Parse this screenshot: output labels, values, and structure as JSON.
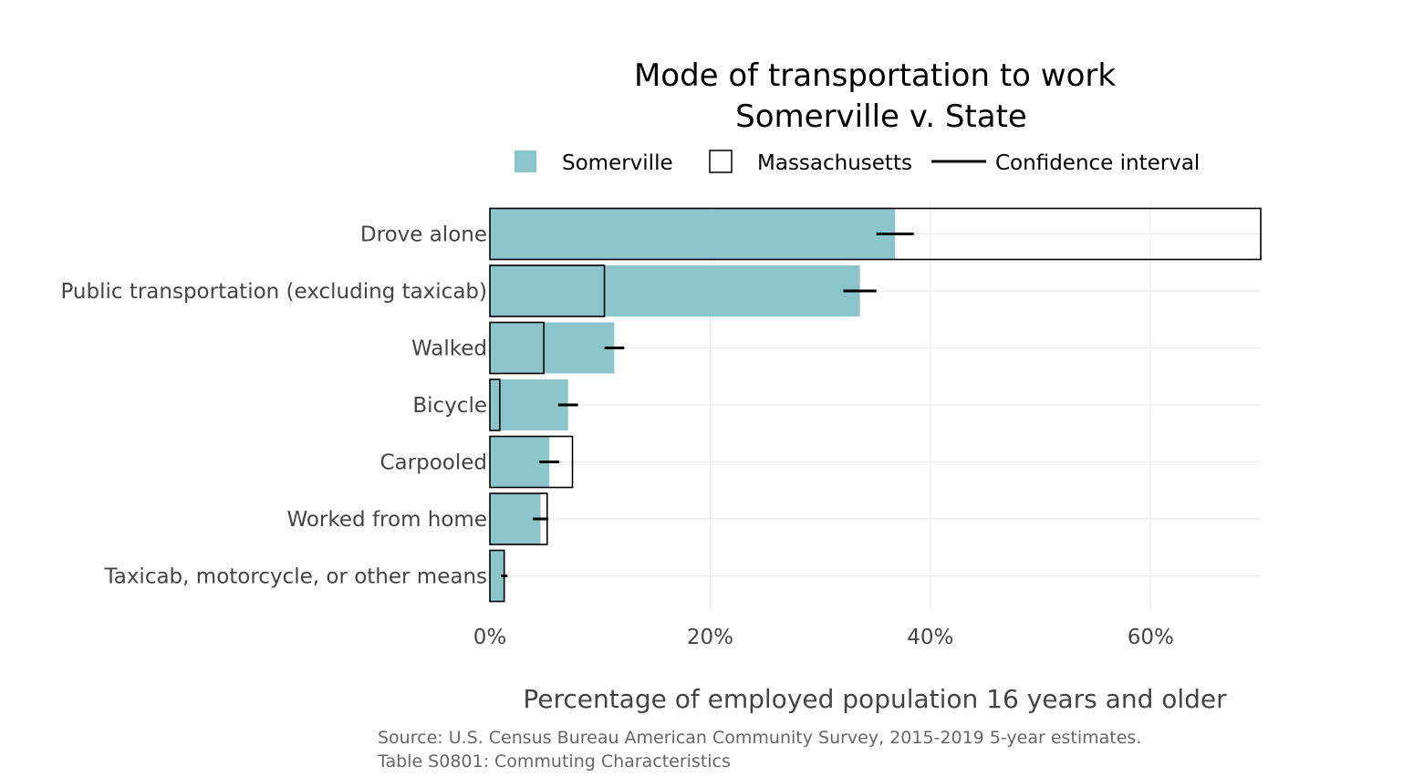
{
  "chart_data": {
    "type": "bar",
    "orientation": "horizontal",
    "title": "Mode of transportation to work",
    "subtitle": "Somerville v. State",
    "xlabel": "Percentage of employed population 16 years and older",
    "ylabel": "",
    "xlim": [
      0,
      70
    ],
    "x_ticks": [
      0,
      20,
      40,
      60
    ],
    "x_tick_labels": [
      "0%",
      "20%",
      "40%",
      "60%"
    ],
    "grid": true,
    "legend_position": "top",
    "legend": [
      {
        "label": "Somerville",
        "kind": "filled-box"
      },
      {
        "label": "Massachusetts",
        "kind": "outlined-box"
      },
      {
        "label": "Confidence interval",
        "kind": "line"
      }
    ],
    "categories": [
      "Drove alone",
      "Public transportation (excluding taxicab)",
      "Walked",
      "Bicycle",
      "Carpooled",
      "Worked from home",
      "Taxicab, motorcycle, or other means"
    ],
    "series": [
      {
        "name": "Somerville",
        "values": [
          36.8,
          33.6,
          11.3,
          7.1,
          5.4,
          4.6,
          1.3
        ],
        "ci_low": [
          35.1,
          32.1,
          10.4,
          6.2,
          4.5,
          3.9,
          1.0
        ],
        "ci_high": [
          38.5,
          35.1,
          12.2,
          8.0,
          6.3,
          5.3,
          1.6
        ]
      },
      {
        "name": "Massachusetts",
        "values": [
          70.0,
          10.4,
          4.9,
          0.9,
          7.5,
          5.2,
          1.3
        ]
      }
    ],
    "colors": {
      "somerville_fill": "#8cc4cc",
      "massachusetts_stroke": "#000000",
      "ci_line": "#000000",
      "grid": "#ebebeb"
    }
  },
  "source": {
    "line1": "Source: U.S. Census Bureau American Community Survey, 2015-2019 5-year estimates.",
    "line2": "Table S0801: Commuting Characteristics"
  }
}
